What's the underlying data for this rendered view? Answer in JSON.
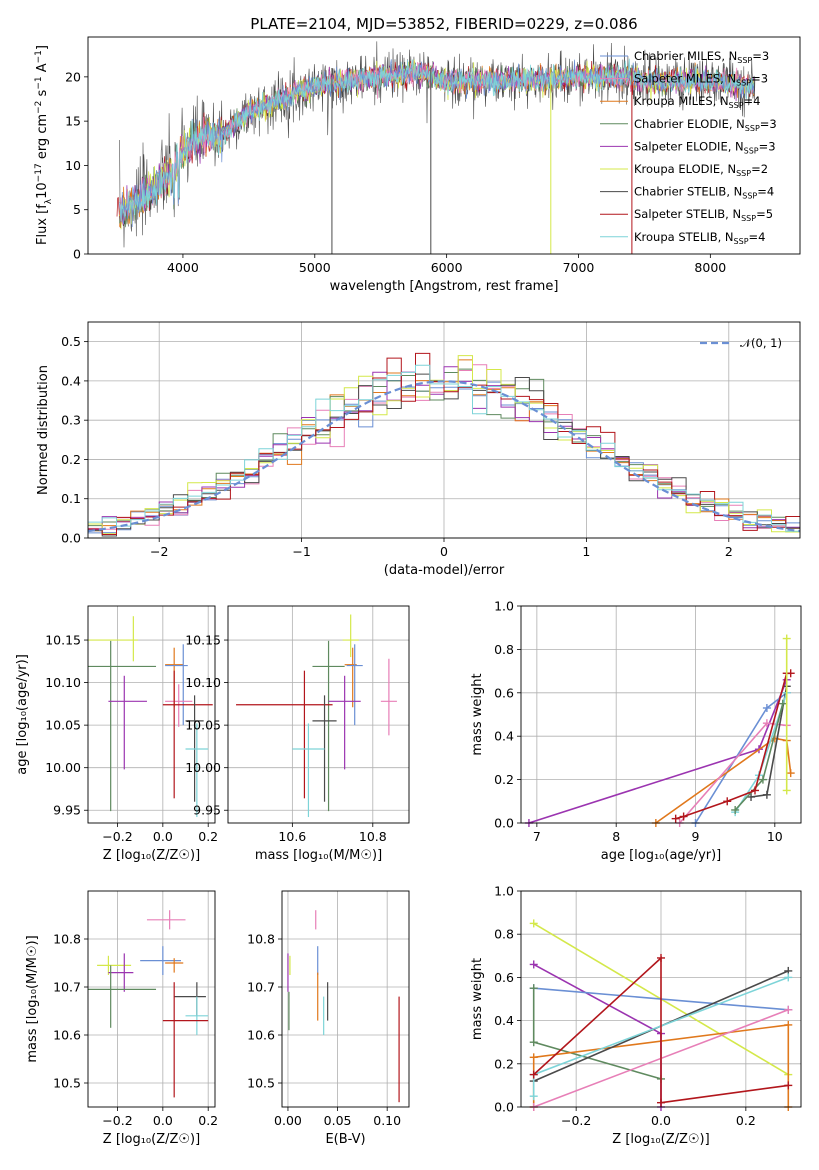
{
  "colors": {
    "Chabrier MILES": "#6a8fd4",
    "Salpeter MILES": "#e77fb7",
    "Kroupa MILES": "#e0781c",
    "Chabrier ELODIE": "#5f8a5f",
    "Salpeter ELODIE": "#9b34b0",
    "Kroupa ELODIE": "#d4e84a",
    "Chabrier STELIB": "#4a4a4a",
    "Salpeter STELIB": "#b2161c",
    "Kroupa STELIB": "#7dd4d8"
  },
  "chart_data": [
    {
      "type": "line",
      "title": "PLATE=2104, MJD=53852, FIBERID=0229, z=0.086",
      "xlabel": "wavelength [Angstrom, rest frame]",
      "ylabel_parts": [
        "Flux [f",
        "λ",
        "10",
        "−17",
        " erg cm",
        "−2",
        " s",
        "−1",
        " A",
        "−1",
        "]"
      ],
      "xlim": [
        3280,
        8680
      ],
      "ylim": [
        0,
        24.5
      ],
      "xticks": [
        4000,
        5000,
        6000,
        7000,
        8000
      ],
      "yticks": [
        0,
        5,
        10,
        15,
        20
      ],
      "grid": false,
      "legend_position": "top-right",
      "series": [
        {
          "name_main": "Chabrier MILES, N",
          "sub": "SSP",
          "n": "=3"
        },
        {
          "name_main": "Salpeter MILES, N",
          "sub": "SSP",
          "n": "=3"
        },
        {
          "name_main": "Kroupa MILES, N",
          "sub": "SSP",
          "n": "=4"
        },
        {
          "name_main": "Chabrier ELODIE, N",
          "sub": "SSP",
          "n": "=3"
        },
        {
          "name_main": "Salpeter ELODIE, N",
          "sub": "SSP",
          "n": "=3"
        },
        {
          "name_main": "Kroupa ELODIE, N",
          "sub": "SSP",
          "n": "=2"
        },
        {
          "name_main": "Chabrier STELIB, N",
          "sub": "SSP",
          "n": "=4"
        },
        {
          "name_main": "Salpeter STELIB, N",
          "sub": "SSP",
          "n": "=5"
        },
        {
          "name_main": "Kroupa STELIB, N",
          "sub": "SSP",
          "n": "=4"
        }
      ],
      "continuum_x": [
        3500,
        3700,
        3900,
        4000,
        4100,
        4300,
        4500,
        5000,
        5500,
        5800,
        6000,
        6500,
        7000,
        7400,
        7500,
        8000,
        8300
      ],
      "continuum_y": [
        4.5,
        6.5,
        9.0,
        11.5,
        13.0,
        13.5,
        16.0,
        19.0,
        20.0,
        20.5,
        19.5,
        19.5,
        20.0,
        20.0,
        19.5,
        19.5,
        19.0
      ]
    },
    {
      "type": "histogram",
      "xlabel": "(data-model)/error",
      "ylabel": "Normed distribution",
      "xlim": [
        -2.5,
        2.5
      ],
      "ylim": [
        0,
        0.55
      ],
      "xticks": [
        -2,
        -1,
        0,
        1,
        2
      ],
      "yticks": [
        0.0,
        0.1,
        0.2,
        0.3,
        0.4,
        0.5
      ],
      "grid": true,
      "legend": "𝒩(0, 1)",
      "legend_position": "top-right",
      "bin_width": 0.1
    },
    {
      "type": "scatter",
      "xlabel": "Z [log₁₀(Z/Z☉)]",
      "ylabel": "age  [log₁₀(age/yr)]",
      "xlim": [
        -0.33,
        0.23
      ],
      "ylim": [
        9.935,
        10.19
      ],
      "xticks": [
        -0.2,
        0.0,
        0.2
      ],
      "yticks": [
        9.95,
        10.0,
        10.05,
        10.1,
        10.15
      ],
      "grid": true,
      "points": [
        {
          "model": "Kroupa ELODIE",
          "x": -0.13,
          "xerr": [
            0.2,
            0.02
          ],
          "y": 10.15,
          "yerr": [
            0.025,
            0.028
          ]
        },
        {
          "model": "Chabrier ELODIE",
          "x": -0.23,
          "xerr": [
            0.1,
            0.2
          ],
          "y": 10.119,
          "yerr": [
            0.17,
            0.03
          ]
        },
        {
          "model": "Kroupa MILES",
          "x": 0.05,
          "xerr": [
            0.04,
            0.04
          ],
          "y": 10.121,
          "yerr": [
            0.05,
            0.02
          ]
        },
        {
          "model": "Chabrier MILES",
          "x": 0.09,
          "xerr": [
            0.08,
            0.02
          ],
          "y": 10.12,
          "yerr": [
            0.07,
            0.025
          ]
        },
        {
          "model": "Salpeter ELODIE",
          "x": -0.17,
          "xerr": [
            0.07,
            0.1
          ],
          "y": 10.078,
          "yerr": [
            0.08,
            0.03
          ]
        },
        {
          "model": "Salpeter MILES",
          "x": 0.07,
          "xerr": [
            0.06,
            0.06
          ],
          "y": 10.078,
          "yerr": [
            0.03,
            0.02
          ]
        },
        {
          "model": "Salpeter STELIB",
          "x": 0.05,
          "xerr": [
            0.05,
            0.17
          ],
          "y": 10.074,
          "yerr": [
            0.11,
            0.04
          ]
        },
        {
          "model": "Chabrier STELIB",
          "x": 0.14,
          "xerr": [
            0.04,
            0.04
          ],
          "y": 10.055,
          "yerr": [
            0.095,
            0.03
          ]
        },
        {
          "model": "Kroupa STELIB",
          "x": 0.15,
          "xerr": [
            0.05,
            0.05
          ],
          "y": 10.022,
          "yerr": [
            0.08,
            0.03
          ]
        }
      ]
    },
    {
      "type": "scatter",
      "xlabel": "mass [log₁₀(M/M☉)]",
      "ylabel": "",
      "xlim": [
        10.44,
        10.89
      ],
      "ylim": [
        9.935,
        10.19
      ],
      "xticks": [
        10.6,
        10.8
      ],
      "yticks": [
        9.95,
        10.0,
        10.05,
        10.1,
        10.15
      ],
      "grid": true,
      "points": [
        {
          "model": "Kroupa ELODIE",
          "x": 10.745,
          "xerr": [
            0.02,
            0.02
          ],
          "y": 10.15,
          "yerr": [
            0.02,
            0.03
          ]
        },
        {
          "model": "Chabrier ELODIE",
          "x": 10.69,
          "xerr": [
            0.04,
            0.04
          ],
          "y": 10.119,
          "yerr": [
            0.17,
            0.03
          ]
        },
        {
          "model": "Kroupa MILES",
          "x": 10.75,
          "xerr": [
            0.02,
            0.01
          ],
          "y": 10.121,
          "yerr": [
            0.05,
            0.02
          ]
        },
        {
          "model": "Chabrier MILES",
          "x": 10.755,
          "xerr": [
            0.02,
            0.02
          ],
          "y": 10.12,
          "yerr": [
            0.07,
            0.025
          ]
        },
        {
          "model": "Salpeter ELODIE",
          "x": 10.73,
          "xerr": [
            0.04,
            0.04
          ],
          "y": 10.078,
          "yerr": [
            0.08,
            0.03
          ]
        },
        {
          "model": "Salpeter MILES",
          "x": 10.84,
          "xerr": [
            0.02,
            0.02
          ],
          "y": 10.078,
          "yerr": [
            0.04,
            0.05
          ]
        },
        {
          "model": "Salpeter STELIB",
          "x": 10.63,
          "xerr": [
            0.17,
            0.07
          ],
          "y": 10.074,
          "yerr": [
            0.11,
            0.04
          ]
        },
        {
          "model": "Chabrier STELIB",
          "x": 10.68,
          "xerr": [
            0.03,
            0.03
          ],
          "y": 10.055,
          "yerr": [
            0.095,
            0.03
          ]
        },
        {
          "model": "Kroupa STELIB",
          "x": 10.64,
          "xerr": [
            0.04,
            0.04
          ],
          "y": 10.022,
          "yerr": [
            0.08,
            0.03
          ]
        }
      ]
    },
    {
      "type": "line",
      "xlabel": "age  [log₁₀(age/yr)]",
      "ylabel": "mass weight",
      "xlim": [
        6.8,
        10.33
      ],
      "ylim": [
        0,
        1.0
      ],
      "xticks": [
        7,
        8,
        9,
        10
      ],
      "yticks": [
        0.0,
        0.2,
        0.4,
        0.6,
        0.8,
        1.0
      ],
      "grid": true,
      "series": [
        {
          "model": "Salpeter ELODIE",
          "x": [
            6.9,
            9.8,
            10.15
          ],
          "y": [
            0.0,
            0.34,
            0.66
          ]
        },
        {
          "model": "Chabrier MILES",
          "x": [
            9.0,
            9.9,
            10.15
          ],
          "y": [
            0.0,
            0.53,
            0.6
          ]
        },
        {
          "model": "Kroupa MILES",
          "x": [
            8.5,
            10.0,
            10.15,
            10.2
          ],
          "y": [
            0.0,
            0.39,
            0.38,
            0.23
          ]
        },
        {
          "model": "Salpeter MILES",
          "x": [
            8.8,
            9.9,
            10.15
          ],
          "y": [
            0.0,
            0.46,
            0.45
          ]
        },
        {
          "model": "Chabrier STELIB",
          "x": [
            9.7,
            9.9,
            10.15
          ],
          "y": [
            0.12,
            0.13,
            0.63
          ]
        },
        {
          "model": "Kroupa STELIB",
          "x": [
            9.5,
            9.8,
            10.15
          ],
          "y": [
            0.05,
            0.22,
            0.6
          ]
        },
        {
          "model": "Chabrier ELODIE",
          "x": [
            9.5,
            9.85,
            10.1
          ],
          "y": [
            0.06,
            0.2,
            0.55
          ]
        },
        {
          "model": "Salpeter STELIB",
          "x": [
            8.75,
            8.85,
            9.4,
            9.75,
            10.15,
            10.2
          ],
          "y": [
            0.02,
            0.03,
            0.1,
            0.15,
            0.69,
            0.69
          ]
        },
        {
          "model": "Kroupa ELODIE",
          "x": [
            10.15,
            10.15
          ],
          "y": [
            0.15,
            0.85
          ]
        }
      ]
    },
    {
      "type": "scatter",
      "xlabel": "Z [log₁₀(Z/Z☉)]",
      "ylabel": "mass [log₁₀(M/M☉)]",
      "xlim": [
        -0.33,
        0.23
      ],
      "ylim": [
        10.45,
        10.9
      ],
      "xticks": [
        -0.2,
        0.0,
        0.2
      ],
      "yticks": [
        10.5,
        10.6,
        10.7,
        10.8
      ],
      "grid": true,
      "points": [
        {
          "model": "Salpeter MILES",
          "x": 0.03,
          "xerr": [
            0.1,
            0.07
          ],
          "y": 10.84,
          "yerr": [
            0.02,
            0.02
          ]
        },
        {
          "model": "Chabrier MILES",
          "x": 0.0,
          "xerr": [
            0.1,
            0.08
          ],
          "y": 10.755,
          "yerr": [
            0.03,
            0.03
          ]
        },
        {
          "model": "Kroupa ELODIE",
          "x": -0.24,
          "xerr": [
            0.05,
            0.1
          ],
          "y": 10.745,
          "yerr": [
            0.02,
            0.02
          ]
        },
        {
          "model": "Kroupa MILES",
          "x": 0.05,
          "xerr": [
            0.04,
            0.04
          ],
          "y": 10.75,
          "yerr": [
            0.02,
            0.01
          ]
        },
        {
          "model": "Salpeter ELODIE",
          "x": -0.17,
          "xerr": [
            0.07,
            0.04
          ],
          "y": 10.73,
          "yerr": [
            0.04,
            0.04
          ]
        },
        {
          "model": "Chabrier ELODIE",
          "x": -0.23,
          "xerr": [
            0.1,
            0.2
          ],
          "y": 10.695,
          "yerr": [
            0.08,
            0.05
          ]
        },
        {
          "model": "Chabrier STELIB",
          "x": 0.15,
          "xerr": [
            0.1,
            0.04
          ],
          "y": 10.68,
          "yerr": [
            0.04,
            0.03
          ]
        },
        {
          "model": "Kroupa STELIB",
          "x": 0.15,
          "xerr": [
            0.05,
            0.05
          ],
          "y": 10.64,
          "yerr": [
            0.04,
            0.04
          ]
        },
        {
          "model": "Salpeter STELIB",
          "x": 0.05,
          "xerr": [
            0.05,
            0.15
          ],
          "y": 10.63,
          "yerr": [
            0.16,
            0.08
          ]
        }
      ]
    },
    {
      "type": "scatter",
      "xlabel": "E(B-V)",
      "ylabel": "",
      "xlim": [
        -0.006,
        0.122
      ],
      "ylim": [
        10.45,
        10.9
      ],
      "xticks": [
        0.0,
        0.05,
        0.1
      ],
      "yticks": [
        10.5,
        10.6,
        10.7,
        10.8
      ],
      "grid": true,
      "points": [
        {
          "model": "Salpeter MILES",
          "x": 0.028,
          "xerr": [
            0,
            0
          ],
          "y": 10.84,
          "yerr": [
            0.02,
            0.02
          ]
        },
        {
          "model": "Chabrier MILES",
          "x": 0.03,
          "xerr": [
            0,
            0
          ],
          "y": 10.755,
          "yerr": [
            0.03,
            0.03
          ]
        },
        {
          "model": "Kroupa MILES",
          "x": 0.03,
          "xerr": [
            0,
            0
          ],
          "y": 10.7,
          "yerr": [
            0.07,
            0.03
          ]
        },
        {
          "model": "Salpeter ELODIE",
          "x": 0.0,
          "xerr": [
            0,
            0
          ],
          "y": 10.73,
          "yerr": [
            0.04,
            0.04
          ]
        },
        {
          "model": "Kroupa ELODIE",
          "x": 0.002,
          "xerr": [
            0,
            0
          ],
          "y": 10.745,
          "yerr": [
            0.02,
            0.02
          ]
        },
        {
          "model": "Chabrier ELODIE",
          "x": 0.001,
          "xerr": [
            0,
            0
          ],
          "y": 10.65,
          "yerr": [
            0.04,
            0.04
          ]
        },
        {
          "model": "Chabrier STELIB",
          "x": 0.04,
          "xerr": [
            0,
            0
          ],
          "y": 10.67,
          "yerr": [
            0.04,
            0.04
          ]
        },
        {
          "model": "Kroupa STELIB",
          "x": 0.036,
          "xerr": [
            0,
            0
          ],
          "y": 10.64,
          "yerr": [
            0.04,
            0.04
          ]
        },
        {
          "model": "Salpeter STELIB",
          "x": 0.112,
          "xerr": [
            0,
            0
          ],
          "y": 10.57,
          "yerr": [
            0.11,
            0.11
          ]
        }
      ]
    },
    {
      "type": "line",
      "xlabel": "Z [log₁₀(Z/Z☉)]",
      "ylabel": "mass weight",
      "xlim": [
        -0.33,
        0.33
      ],
      "ylim": [
        0,
        1.0
      ],
      "xticks": [
        -0.2,
        0.0,
        0.2
      ],
      "yticks": [
        0.0,
        0.2,
        0.4,
        0.6,
        0.8,
        1.0
      ],
      "grid": true,
      "series": [
        {
          "model": "Kroupa ELODIE",
          "x": [
            -0.3,
            0.3
          ],
          "y": [
            0.85,
            0.15
          ]
        },
        {
          "model": "Salpeter ELODIE",
          "x": [
            -0.3,
            0.0,
            0.0
          ],
          "y": [
            0.66,
            0.34,
            0.0
          ]
        },
        {
          "model": "Chabrier MILES",
          "x": [
            -0.3,
            0.3
          ],
          "y": [
            0.55,
            0.45
          ]
        },
        {
          "model": "Chabrier ELODIE",
          "x": [
            -0.3,
            -0.3,
            0.0
          ],
          "y": [
            0.55,
            0.3,
            0.13
          ]
        },
        {
          "model": "Kroupa MILES",
          "x": [
            -0.3,
            -0.3,
            0.3,
            0.3
          ],
          "y": [
            0.0,
            0.23,
            0.38,
            0.0
          ]
        },
        {
          "model": "Salpeter MILES",
          "x": [
            -0.3,
            0.3
          ],
          "y": [
            0.0,
            0.45
          ]
        },
        {
          "model": "Chabrier STELIB",
          "x": [
            -0.3,
            0.3
          ],
          "y": [
            0.12,
            0.63
          ]
        },
        {
          "model": "Kroupa STELIB",
          "x": [
            -0.3,
            -0.3,
            0.3
          ],
          "y": [
            0.05,
            0.15,
            0.6
          ]
        },
        {
          "model": "Salpeter STELIB",
          "x": [
            -0.3,
            0.0,
            0.0,
            0.3
          ],
          "y": [
            0.15,
            0.69,
            0.02,
            0.1
          ]
        }
      ]
    }
  ]
}
